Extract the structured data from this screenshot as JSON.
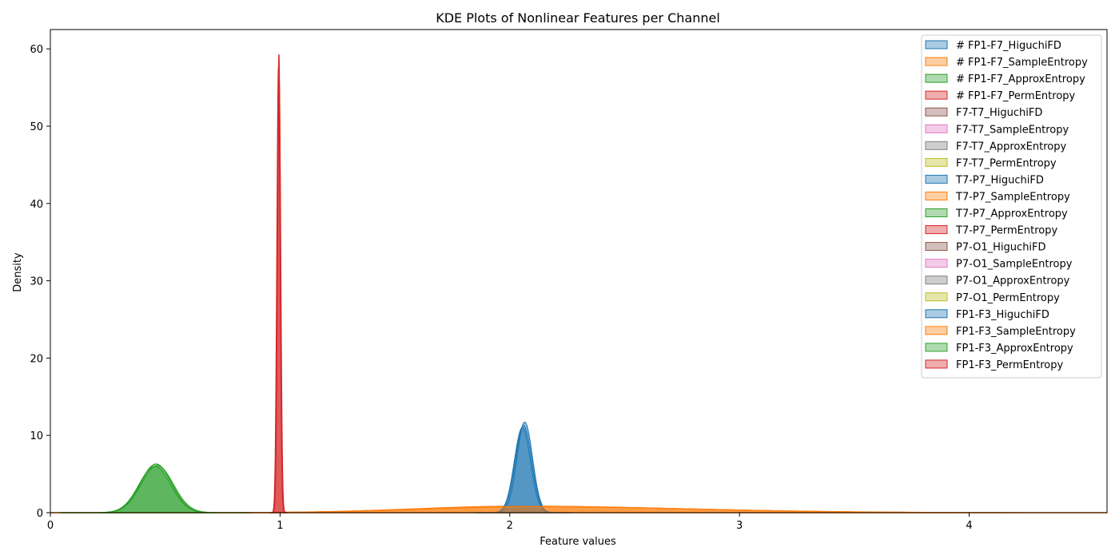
{
  "chart_data": {
    "type": "area",
    "title": "KDE Plots of Nonlinear Features per Channel",
    "xlabel": "Feature values",
    "ylabel": "Density",
    "xlim": [
      0,
      4.6
    ],
    "ylim": [
      0,
      62.5
    ],
    "xticks": [
      0,
      1,
      2,
      3,
      4
    ],
    "yticks": [
      0,
      10,
      20,
      30,
      40,
      50,
      60
    ],
    "grid": false,
    "legend_position": "upper right",
    "palette": [
      "#1f77b4",
      "#ff7f0e",
      "#2ca02c",
      "#d62728",
      "#8c564b",
      "#e377c2",
      "#7f7f7f",
      "#bcbd22"
    ],
    "series": [
      {
        "name": "# FP1-F7_HiguchiFD",
        "color": "#1f77b4",
        "mu": 2.065,
        "sigma": 0.034,
        "peak": 11.7,
        "visible": true
      },
      {
        "name": "# FP1-F7_SampleEntropy",
        "color": "#ff7f0e",
        "mu": 2.05,
        "sigma": 0.45,
        "peak": 0.85,
        "skew": 0.55,
        "visible": true
      },
      {
        "name": "# FP1-F7_ApproxEntropy",
        "color": "#2ca02c",
        "mu": 0.46,
        "sigma": 0.068,
        "peak": 6.3,
        "visible": true
      },
      {
        "name": "# FP1-F7_PermEntropy",
        "color": "#d62728",
        "mu": 0.995,
        "sigma": 0.0068,
        "peak": 59.3,
        "visible": true
      },
      {
        "name": "F7-T7_HiguchiFD",
        "color": "#8c564b",
        "visible": false
      },
      {
        "name": "F7-T7_SampleEntropy",
        "color": "#e377c2",
        "visible": false
      },
      {
        "name": "F7-T7_ApproxEntropy",
        "color": "#7f7f7f",
        "visible": false
      },
      {
        "name": "F7-T7_PermEntropy",
        "color": "#bcbd22",
        "visible": false
      },
      {
        "name": "T7-P7_HiguchiFD",
        "color": "#1f77b4",
        "mu": 2.06,
        "sigma": 0.035,
        "peak": 11.3,
        "visible": true
      },
      {
        "name": "T7-P7_SampleEntropy",
        "color": "#ff7f0e",
        "mu": 2.08,
        "sigma": 0.45,
        "peak": 0.8,
        "skew": 0.55,
        "visible": true
      },
      {
        "name": "T7-P7_ApproxEntropy",
        "color": "#2ca02c",
        "mu": 0.465,
        "sigma": 0.07,
        "peak": 6.1,
        "visible": true
      },
      {
        "name": "T7-P7_PermEntropy",
        "color": "#d62728",
        "mu": 0.993,
        "sigma": 0.007,
        "peak": 57.5,
        "visible": true
      },
      {
        "name": "P7-O1_HiguchiFD",
        "color": "#8c564b",
        "visible": false
      },
      {
        "name": "P7-O1_SampleEntropy",
        "color": "#e377c2",
        "visible": false
      },
      {
        "name": "P7-O1_ApproxEntropy",
        "color": "#7f7f7f",
        "visible": false
      },
      {
        "name": "P7-O1_PermEntropy",
        "color": "#bcbd22",
        "visible": false
      },
      {
        "name": "FP1-F3_HiguchiFD",
        "color": "#1f77b4",
        "mu": 2.055,
        "sigma": 0.035,
        "peak": 11.0,
        "visible": true
      },
      {
        "name": "FP1-F3_SampleEntropy",
        "color": "#ff7f0e",
        "mu": 2.1,
        "sigma": 0.46,
        "peak": 0.78,
        "skew": 0.55,
        "visible": true
      },
      {
        "name": "FP1-F3_ApproxEntropy",
        "color": "#2ca02c",
        "mu": 0.455,
        "sigma": 0.069,
        "peak": 6.0,
        "visible": true
      },
      {
        "name": "FP1-F3_PermEntropy",
        "color": "#d62728",
        "mu": 0.996,
        "sigma": 0.007,
        "peak": 56.0,
        "visible": true
      }
    ]
  }
}
